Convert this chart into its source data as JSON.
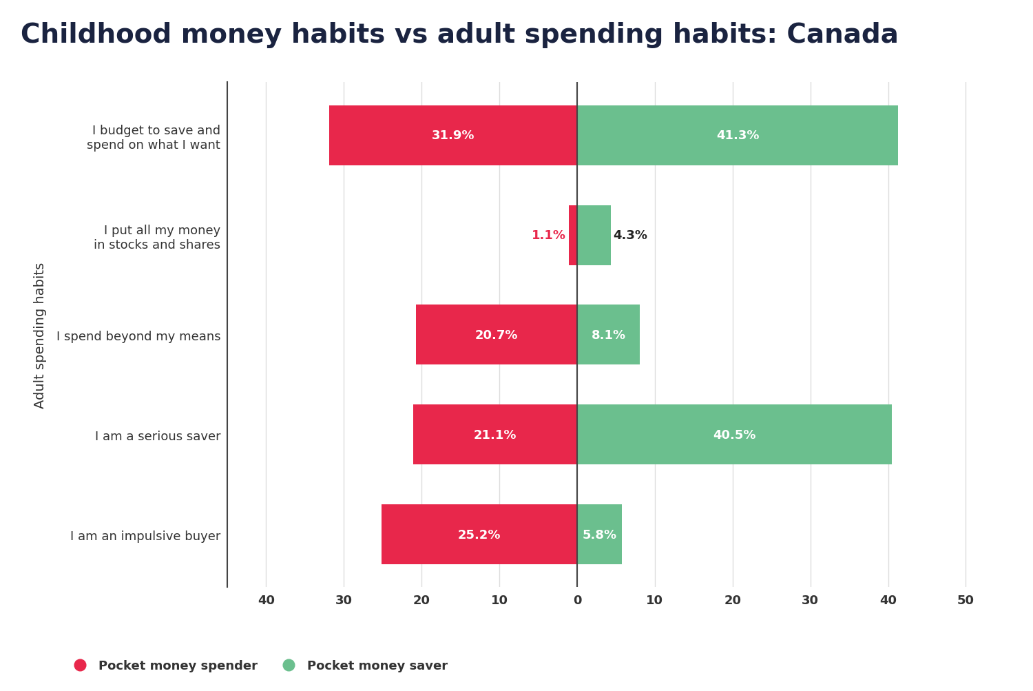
{
  "title": "Childhood money habits vs adult spending habits: Canada",
  "categories": [
    "I am an impulsive buyer",
    "I am a serious saver",
    "I spend beyond my means",
    "I put all my money\nin stocks and shares",
    "I budget to save and\nspend on what I want"
  ],
  "spender_values": [
    25.2,
    21.1,
    20.7,
    1.1,
    31.9
  ],
  "saver_values": [
    5.8,
    40.5,
    8.1,
    4.3,
    41.3
  ],
  "spender_color": "#E8274B",
  "saver_color": "#6BBF8E",
  "ylabel": "Adult spending habits",
  "xlim_left": -45,
  "xlim_right": 52,
  "xticks": [
    -40,
    -30,
    -20,
    -10,
    0,
    10,
    20,
    30,
    40,
    50
  ],
  "xticklabels": [
    "40",
    "30",
    "20",
    "10",
    "0",
    "10",
    "20",
    "30",
    "40",
    "50"
  ],
  "background_color": "#FFFFFF",
  "title_color": "#1a2340",
  "title_fontsize": 28,
  "bar_height": 0.6,
  "legend_spender": "Pocket money spender",
  "legend_saver": "Pocket money saver",
  "spine_color": "#444444",
  "grid_color": "#DDDDDD",
  "tick_label_color": "#333333",
  "label_fontsize": 13,
  "bar_label_fontsize": 13
}
